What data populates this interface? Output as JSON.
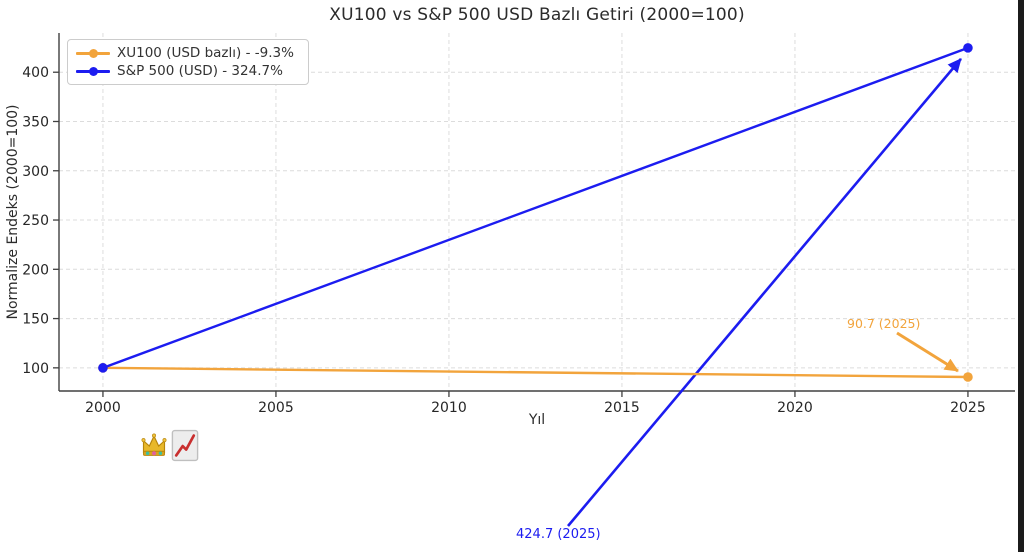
{
  "figure": {
    "title": "XU100 vs S&P 500 USD Bazlı Getiri (2000=100)",
    "xlabel": "Yıl",
    "ylabel": "Normalize Endeks (2000=100)"
  },
  "legend": {
    "items": [
      {
        "label": "XU100 (USD bazlı) - -9.3%",
        "color": "#f2a43c"
      },
      {
        "label": "S&P 500 (USD) - 324.7%",
        "color": "#1c1cf0"
      }
    ]
  },
  "chart_data": {
    "type": "line",
    "title": "XU100 vs S&P 500 USD Bazlı Getiri (2000=100)",
    "xlabel": "Yıl",
    "ylabel": "Normalize Endeks (2000=100)",
    "x": [
      2000,
      2025
    ],
    "series": [
      {
        "name": "XU100 (USD bazlı)",
        "total_return": "-9.3%",
        "color": "#f2a43c",
        "values": [
          100,
          90.7
        ]
      },
      {
        "name": "S&P 500 (USD)",
        "total_return": "324.7%",
        "color": "#1c1cf0",
        "values": [
          100,
          424.7
        ]
      }
    ],
    "x_ticks": [
      2000,
      2005,
      2010,
      2015,
      2020,
      2025
    ],
    "y_ticks": [
      100,
      150,
      200,
      250,
      300,
      350,
      400
    ],
    "xlim": [
      1998.73,
      2026.36
    ],
    "ylim": [
      76.5,
      439.8
    ],
    "grid": "dashed",
    "legend_position": "upper left",
    "annotations": [
      {
        "text": "90.7 (2025)",
        "x": 2025,
        "y": 90.7,
        "color": "#f2a43c"
      },
      {
        "text": "424.7 (2025)",
        "x": 2025,
        "y": 424.7,
        "color": "#1c1cf0"
      }
    ]
  },
  "footer_icons": [
    {
      "name": "crown-emoji"
    },
    {
      "name": "chart-increasing-emoji"
    }
  ]
}
